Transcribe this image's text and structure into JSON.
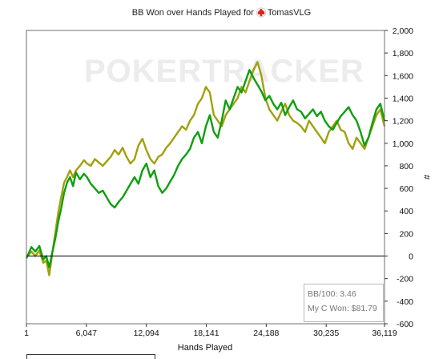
{
  "chart_data": {
    "type": "line",
    "title": "BB Won over Hands Played for",
    "player": "TomasVLG",
    "watermark": "POKERTRACKER",
    "xlabel": "Hands Played",
    "ylabel": "#",
    "xlim": [
      1,
      36119
    ],
    "ylim": [
      -600,
      2000
    ],
    "x_ticks": [
      1,
      6047,
      12094,
      18141,
      24188,
      30235,
      36119
    ],
    "x_tick_labels": [
      "1",
      "6,047",
      "12,094",
      "18,141",
      "24,188",
      "30,235",
      "36,119"
    ],
    "y_ticks": [
      -600,
      -400,
      -200,
      0,
      200,
      400,
      600,
      800,
      1000,
      1200,
      1400,
      1600,
      1800,
      2000
    ],
    "y_tick_labels": [
      "-600",
      "-400",
      "-200",
      "0",
      "200",
      "400",
      "600",
      "800",
      "1,000",
      "1,200",
      "1,400",
      "1,600",
      "1,800",
      "2,000"
    ],
    "grid": false,
    "series": [
      {
        "color": "#0e9f0e",
        "x": [
          1,
          500,
          900,
          1300,
          1700,
          2000,
          2300,
          2600,
          2900,
          3200,
          3500,
          3800,
          4100,
          4400,
          4700,
          5000,
          5400,
          5800,
          6100,
          6500,
          6900,
          7300,
          7700,
          8100,
          8500,
          8900,
          9300,
          9700,
          10100,
          10500,
          10900,
          11300,
          11700,
          12100,
          12500,
          12900,
          13300,
          13700,
          14100,
          14500,
          14900,
          15300,
          15700,
          16100,
          16500,
          16900,
          17300,
          17700,
          18100,
          18500,
          18900,
          19300,
          19700,
          20100,
          20500,
          20900,
          21300,
          21700,
          22100,
          22500,
          22900,
          23300,
          23700,
          24100,
          24500,
          24900,
          25300,
          25700,
          26100,
          26500,
          26900,
          27300,
          27700,
          28100,
          28500,
          28900,
          29300,
          29700,
          30100,
          30500,
          30900,
          31300,
          31700,
          32100,
          32500,
          32900,
          33300,
          33700,
          34100,
          34500,
          34900,
          35300,
          35700,
          36119
        ],
        "values": [
          -20,
          80,
          40,
          90,
          -30,
          0,
          -100,
          30,
          150,
          300,
          420,
          560,
          650,
          700,
          620,
          740,
          680,
          730,
          700,
          640,
          600,
          560,
          580,
          520,
          460,
          430,
          480,
          520,
          580,
          640,
          700,
          640,
          760,
          820,
          700,
          760,
          620,
          560,
          600,
          660,
          720,
          800,
          860,
          900,
          950,
          1050,
          1100,
          1000,
          1150,
          1250,
          1100,
          1050,
          1200,
          1380,
          1300,
          1400,
          1500,
          1450,
          1550,
          1650,
          1580,
          1520,
          1460,
          1380,
          1420,
          1350,
          1300,
          1360,
          1250,
          1320,
          1380,
          1300,
          1280,
          1220,
          1260,
          1300,
          1240,
          1280,
          1200,
          1150,
          1120,
          1180,
          1240,
          1280,
          1320,
          1250,
          1200,
          1100,
          980,
          1050,
          1180,
          1300,
          1350,
          1200
        ]
      },
      {
        "color": "#a2a00c",
        "x": [
          1,
          500,
          900,
          1300,
          1700,
          2000,
          2300,
          2600,
          2900,
          3200,
          3500,
          3800,
          4100,
          4400,
          4700,
          5000,
          5400,
          5800,
          6100,
          6500,
          6900,
          7300,
          7700,
          8100,
          8500,
          8900,
          9300,
          9700,
          10100,
          10500,
          10900,
          11300,
          11700,
          12100,
          12500,
          12900,
          13300,
          13700,
          14100,
          14500,
          14900,
          15300,
          15700,
          16100,
          16500,
          16900,
          17300,
          17700,
          18100,
          18500,
          18900,
          19300,
          19700,
          20100,
          20500,
          20900,
          21300,
          21700,
          22100,
          22500,
          22900,
          23300,
          23700,
          24100,
          24500,
          24900,
          25300,
          25700,
          26100,
          26500,
          26900,
          27300,
          27700,
          28100,
          28500,
          28900,
          29300,
          29700,
          30100,
          30500,
          30900,
          31300,
          31700,
          32100,
          32500,
          32900,
          33300,
          33700,
          34100,
          34500,
          34900,
          35300,
          35700,
          36119
        ],
        "values": [
          -10,
          40,
          0,
          50,
          -60,
          -40,
          -170,
          20,
          200,
          380,
          520,
          650,
          700,
          760,
          700,
          760,
          800,
          850,
          820,
          800,
          860,
          830,
          800,
          840,
          880,
          940,
          900,
          960,
          880,
          820,
          860,
          980,
          1040,
          940,
          860,
          820,
          880,
          900,
          960,
          1000,
          1050,
          1100,
          1150,
          1120,
          1200,
          1250,
          1350,
          1400,
          1500,
          1450,
          1250,
          1200,
          1150,
          1250,
          1300,
          1350,
          1400,
          1500,
          1450,
          1550,
          1650,
          1720,
          1600,
          1400,
          1300,
          1250,
          1200,
          1280,
          1350,
          1250,
          1200,
          1180,
          1150,
          1100,
          1200,
          1150,
          1100,
          1050,
          1000,
          1100,
          1150,
          1200,
          1120,
          1100,
          1000,
          950,
          1050,
          1000,
          950,
          1050,
          1150,
          1250,
          1300,
          1150
        ]
      }
    ],
    "stats": {
      "bb100_label": "BB/100:",
      "bb100_value": "3.46",
      "cwon_label": "My C Won:",
      "cwon_value": "$81.79"
    }
  }
}
